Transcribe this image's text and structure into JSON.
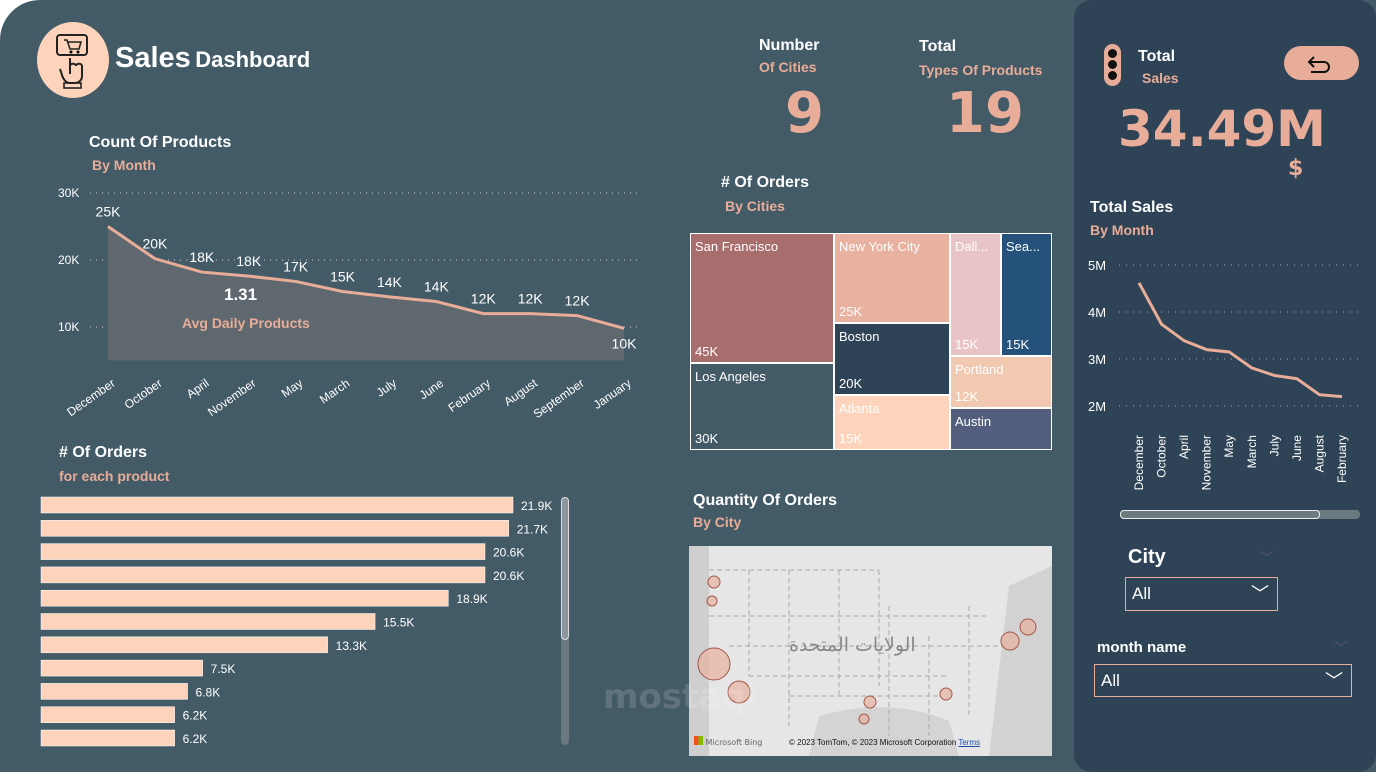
{
  "header": {
    "title_bold": "Sales",
    "title_rest": "Dashboard",
    "logo_icon": "cart-click-icon"
  },
  "kpis": {
    "cities": {
      "label1": "Number",
      "label2": "Of Cities",
      "value": "9"
    },
    "products": {
      "label1": "Total",
      "label2": "Types Of Products",
      "value": "19"
    },
    "sales": {
      "label1": "Total",
      "label2": "Sales",
      "value": "34.49M",
      "unit": "$"
    }
  },
  "colors": {
    "background": "#435a67",
    "panel": "#2e4356",
    "accent": "#e8ad98",
    "bar": "#fdd4bb"
  },
  "count_chart": {
    "title": "Count Of Products",
    "subtitle": "By Month",
    "avg_value": "1.31",
    "avg_label": "Avg Daily Products",
    "chart_data": {
      "type": "area",
      "categories": [
        "December",
        "October",
        "April",
        "November",
        "May",
        "March",
        "July",
        "June",
        "February",
        "August",
        "September",
        "January"
      ],
      "values": [
        25,
        20.2,
        18.2,
        17.6,
        16.8,
        15.3,
        14.5,
        13.8,
        12,
        12,
        11.7,
        9.8
      ],
      "labels": [
        "25K",
        "20K",
        "18K",
        "18K",
        "17K",
        "15K",
        "14K",
        "14K",
        "12K",
        "12K",
        "12K",
        "10K"
      ],
      "yticks": [
        "10K",
        "20K",
        "30K"
      ],
      "ytick_values": [
        10,
        20,
        30
      ],
      "ylim": [
        5,
        30
      ],
      "grid": true
    }
  },
  "orders_products": {
    "title": "# Of Orders",
    "subtitle": "for each product",
    "chart_data": {
      "type": "bar",
      "orientation": "horizontal",
      "values": [
        21.9,
        21.7,
        20.6,
        20.6,
        18.9,
        15.5,
        13.3,
        7.5,
        6.8,
        6.2,
        6.2
      ],
      "labels": [
        "21.9K",
        "21.7K",
        "20.6K",
        "20.6K",
        "18.9K",
        "15.5K",
        "13.3K",
        "7.5K",
        "6.8K",
        "6.2K",
        "6.2K"
      ]
    }
  },
  "treemap": {
    "title": "# Of Orders",
    "subtitle": "By Cities",
    "chart_data": {
      "type": "treemap",
      "items": [
        {
          "name": "San Francisco",
          "label": "45K",
          "value": 45,
          "color": "#a86e6e"
        },
        {
          "name": "Los Angeles",
          "label": "30K",
          "value": 30,
          "color": "#435a67"
        },
        {
          "name": "New York City",
          "label": "25K",
          "value": 25,
          "color": "#e8b1a0"
        },
        {
          "name": "Boston",
          "label": "20K",
          "value": 20,
          "color": "#2e4356"
        },
        {
          "name": "Atlanta",
          "label": "15K",
          "value": 15,
          "color": "#fdd4bb"
        },
        {
          "name": "Dall...",
          "label": "15K",
          "value": 15,
          "color": "#e8c4c6"
        },
        {
          "name": "Sea...",
          "label": "15K",
          "value": 15,
          "color": "#24527a"
        },
        {
          "name": "Portland",
          "label": "12K",
          "value": 12,
          "color": "#f0c9b0"
        },
        {
          "name": "Austin",
          "label": "",
          "value": 11,
          "color": "#535d7d"
        }
      ]
    }
  },
  "map": {
    "title": "Quantity Of Orders",
    "subtitle": "By City",
    "country_label": "الولايات المتحدة",
    "bing": "Microsoft Bing",
    "copyright": "© 2023 TomTom, © 2023 Microsoft Corporation",
    "terms": "Terms"
  },
  "sales_chart": {
    "title": "Total Sales",
    "subtitle": "By Month",
    "chart_data": {
      "type": "line",
      "categories": [
        "December",
        "October",
        "April",
        "November",
        "May",
        "March",
        "July",
        "June",
        "August",
        "February"
      ],
      "values": [
        4.62,
        3.74,
        3.39,
        3.2,
        3.15,
        2.81,
        2.65,
        2.58,
        2.24,
        2.2
      ],
      "yticks": [
        "2M",
        "3M",
        "4M",
        "5M"
      ],
      "ytick_values": [
        2,
        3,
        4,
        5
      ],
      "ylim": [
        2,
        5
      ],
      "grid": true
    }
  },
  "filters": {
    "city": {
      "label": "City",
      "value": "All"
    },
    "month": {
      "label": "month name",
      "value": "All"
    }
  },
  "watermark": "mostaql"
}
